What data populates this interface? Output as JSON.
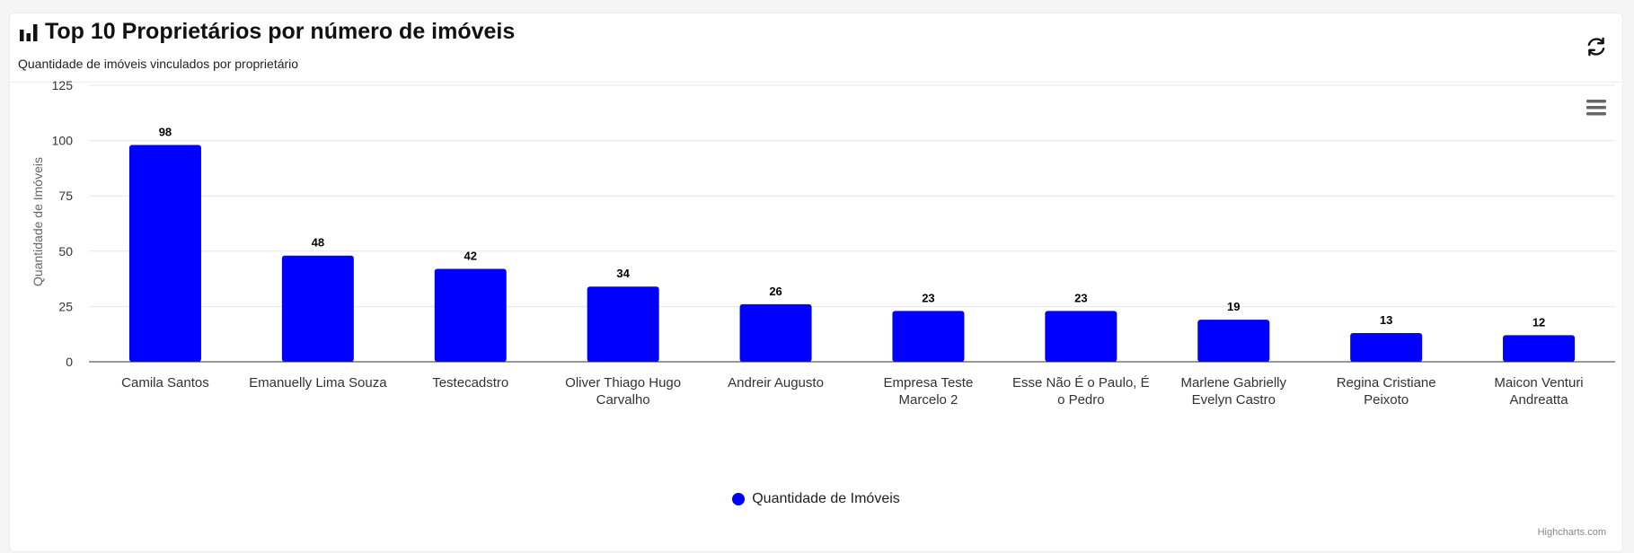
{
  "header": {
    "title": "Top 10 Proprietários por número de imóveis",
    "subtitle": "Quantidade de imóveis vinculados por proprietário",
    "title_icon": "bar-chart-icon",
    "refresh_icon": "refresh-icon"
  },
  "chart_menu_icon": "hamburger-menu-icon",
  "credits": "Highcharts.com",
  "colors": {
    "bar": "#0000ff",
    "grid": "#e6e6e6",
    "axis_text": "#333333"
  },
  "chart_data": {
    "type": "bar",
    "title": "",
    "xlabel": "",
    "ylabel": "Quantidade de Imóveis",
    "ylim": [
      0,
      125
    ],
    "yticks": [
      0,
      25,
      50,
      75,
      100,
      125
    ],
    "categories": [
      [
        "Camila Santos"
      ],
      [
        "Emanuelly Lima Souza"
      ],
      [
        "Testecadstro"
      ],
      [
        "Oliver Thiago Hugo",
        "Carvalho"
      ],
      [
        "Andreir Augusto"
      ],
      [
        "Empresa Teste",
        "Marcelo 2"
      ],
      [
        "Esse Não É o Paulo, É",
        "o Pedro"
      ],
      [
        "Marlene Gabrielly",
        "Evelyn Castro"
      ],
      [
        "Regina Cristiane",
        "Peixoto"
      ],
      [
        "Maicon Venturi",
        "Andreatta"
      ]
    ],
    "series": [
      {
        "name": "Quantidade de Imóveis",
        "values": [
          98,
          48,
          42,
          34,
          26,
          23,
          23,
          19,
          13,
          12
        ]
      }
    ],
    "legend_position": "bottom-center",
    "grid": true
  }
}
